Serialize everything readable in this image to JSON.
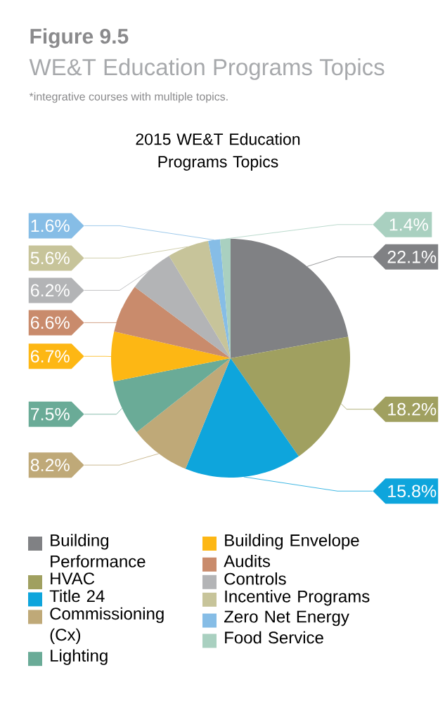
{
  "chart_data": {
    "type": "pie",
    "title": "Figure 9.5",
    "subtitle": "WE&T Education Programs Topics",
    "annotations": [
      "*integrative courses with multiple topics.",
      "2015 WE&T Education Programs Topics"
    ],
    "categories": [
      "Building Performance",
      "HVAC",
      "Title 24",
      "Commissioning (Cx)",
      "Lighting",
      "Building Envelope",
      "Audits",
      "Controls",
      "Incentive Programs",
      "Zero Net Energy",
      "Food Service"
    ],
    "values": [
      22.1,
      18.2,
      15.8,
      8.2,
      7.5,
      6.7,
      6.6,
      6.2,
      5.6,
      1.6,
      1.4
    ],
    "value_labels": [
      "22.1%",
      "18.2%",
      "15.8%",
      "8.2%",
      "7.5%",
      "6.7%",
      "6.6%",
      "6.2%",
      "5.6%",
      "1.6%",
      "1.4%"
    ],
    "colors": [
      "#808184",
      "#a0a060",
      "#0ea5dc",
      "#bfa978",
      "#6aab97",
      "#fdb714",
      "#c98b6c",
      "#b3b4b6",
      "#c7c49a",
      "#86bde6",
      "#a9d0c0"
    ],
    "legend": "bottom"
  }
}
